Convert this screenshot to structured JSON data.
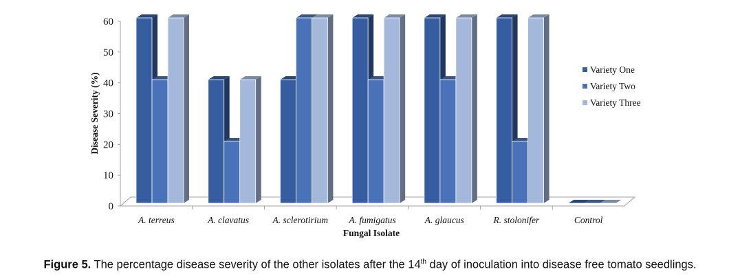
{
  "chart_data": {
    "type": "bar",
    "style": "3d-clustered",
    "categories": [
      "A. terreus",
      "A. clavatus",
      "A. sclerotirium",
      "A. fumigatus",
      "A. glaucus",
      "R. stolonifer",
      "Control"
    ],
    "series": [
      {
        "name": "Variety One",
        "values": [
          60,
          40,
          40,
          60,
          60,
          60,
          0
        ],
        "color": "#365da0"
      },
      {
        "name": "Variety Two",
        "values": [
          40,
          20,
          60,
          40,
          40,
          20,
          0
        ],
        "color": "#4a72b8"
      },
      {
        "name": "Variety Three",
        "values": [
          60,
          40,
          60,
          60,
          60,
          60,
          0
        ],
        "color": "#a4b8dc"
      }
    ],
    "xlabel": "Fungal  Isolate",
    "ylabel": "Disease Severity (%)",
    "ylim": [
      0,
      60
    ],
    "yticks": [
      0,
      10,
      20,
      30,
      40,
      50,
      60
    ],
    "legend_position": "right",
    "grid": false
  },
  "caption": {
    "label": "Figure 5.",
    "text_before": " The percentage disease severity of the other isolates after the 14",
    "superscript": "th",
    "text_after": " day of inoculation into disease free tomato seedlings."
  }
}
